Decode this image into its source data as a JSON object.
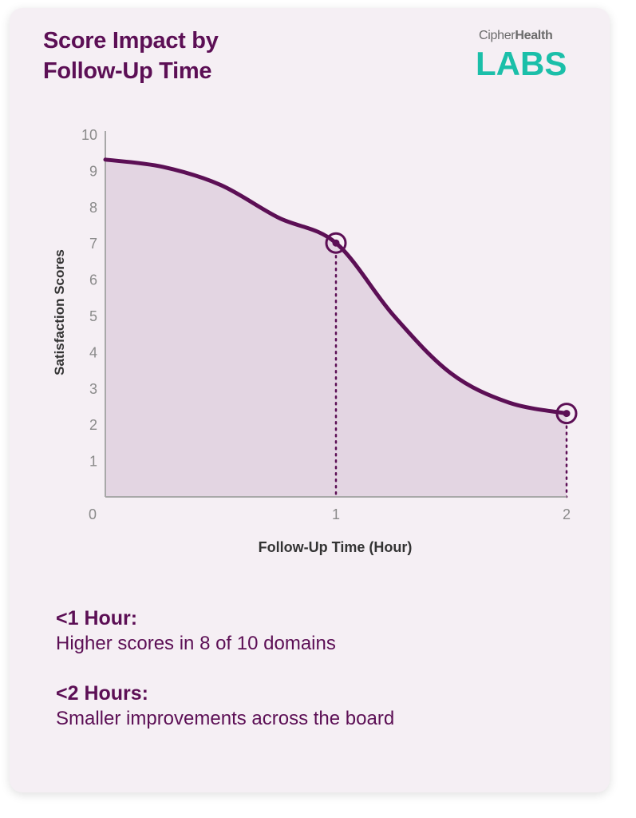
{
  "title": "Score Impact by Follow-Up Time",
  "logo": {
    "top_part1": "Cipher",
    "top_part2": "Health",
    "bottom": "LABS"
  },
  "colors": {
    "accent": "#5c0f55",
    "fill": "#e3d5e2",
    "card": "#f5eff4",
    "logo": "#1bbfa9"
  },
  "chart_data": {
    "type": "area",
    "xlabel": "Follow-Up Time (Hour)",
    "ylabel": "Satisfaction Scores",
    "xlim": [
      0,
      2
    ],
    "ylim": [
      0,
      10
    ],
    "x_ticks": [
      "0",
      "1",
      "2"
    ],
    "y_ticks": [
      "1",
      "2",
      "3",
      "4",
      "5",
      "6",
      "7",
      "8",
      "9",
      "10"
    ],
    "series": [
      {
        "x": [
          0,
          0.25,
          0.5,
          0.75,
          1.0,
          1.25,
          1.5,
          1.75,
          2.0
        ],
        "values": [
          9.3,
          9.1,
          8.6,
          7.7,
          7.0,
          5.0,
          3.4,
          2.6,
          2.3
        ]
      }
    ],
    "highlighted_points": [
      {
        "x": 1,
        "y": 7.0
      },
      {
        "x": 2,
        "y": 2.3
      }
    ],
    "grid": false
  },
  "notes": [
    {
      "heading": "<1 Hour:",
      "text": "Higher scores in 8 of 10 domains"
    },
    {
      "heading": "<2 Hours:",
      "text": "Smaller improvements across the board"
    }
  ]
}
